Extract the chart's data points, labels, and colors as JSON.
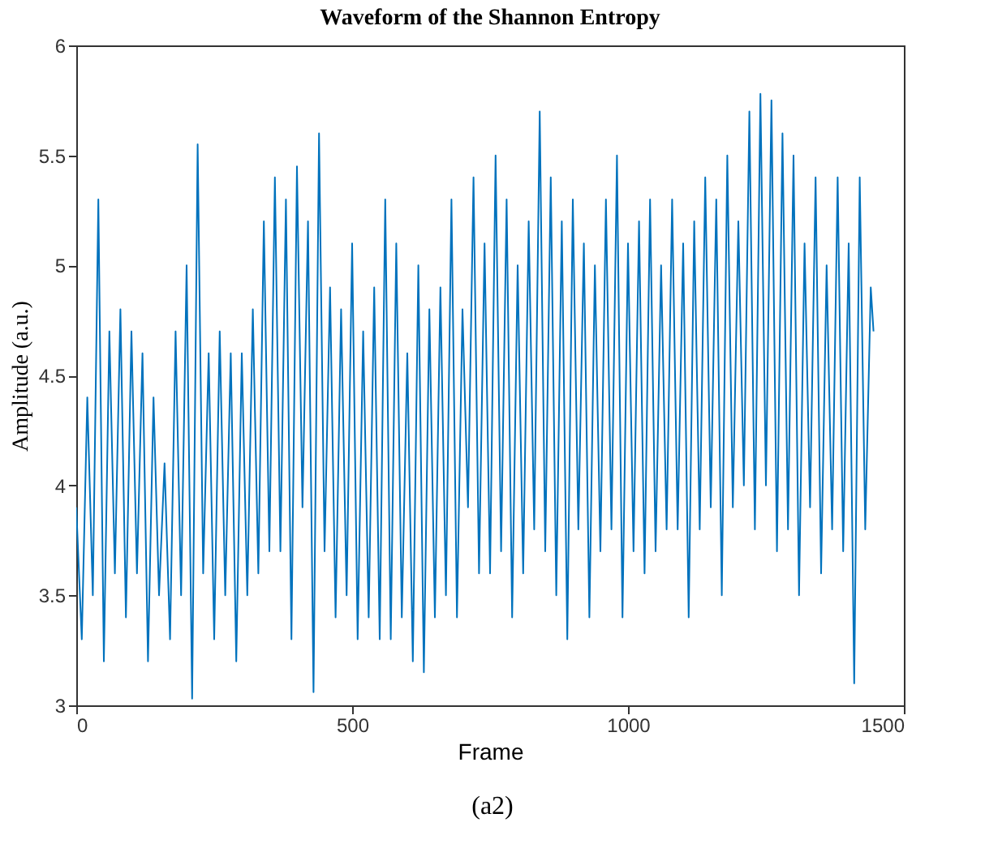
{
  "chart_data": {
    "type": "line",
    "title": "Waveform of the Shannon Entropy",
    "xlabel": "Frame",
    "ylabel": "Amplitude (a.u.)",
    "annotations": [
      "(a2)"
    ],
    "xlim": [
      0,
      1500
    ],
    "xticks": [
      0,
      500,
      1000,
      1500
    ],
    "ylim": [
      3,
      6
    ],
    "yticks": [
      3,
      3.5,
      4,
      4.5,
      5,
      5.5,
      6
    ],
    "grid": false,
    "x": [
      0,
      10,
      20,
      30,
      40,
      50,
      60,
      70,
      80,
      90,
      100,
      110,
      120,
      130,
      140,
      150,
      160,
      170,
      180,
      190,
      200,
      210,
      220,
      230,
      240,
      250,
      260,
      270,
      280,
      290,
      300,
      310,
      320,
      330,
      340,
      350,
      360,
      370,
      380,
      390,
      400,
      410,
      420,
      430,
      440,
      450,
      460,
      470,
      480,
      490,
      500,
      510,
      520,
      530,
      540,
      550,
      560,
      570,
      580,
      590,
      600,
      610,
      620,
      630,
      640,
      650,
      660,
      670,
      680,
      690,
      700,
      710,
      720,
      730,
      740,
      750,
      760,
      770,
      780,
      790,
      800,
      810,
      820,
      830,
      840,
      850,
      860,
      870,
      880,
      890,
      900,
      910,
      920,
      930,
      940,
      950,
      960,
      970,
      980,
      990,
      1000,
      1010,
      1020,
      1030,
      1040,
      1050,
      1060,
      1070,
      1080,
      1090,
      1100,
      1110,
      1120,
      1130,
      1140,
      1150,
      1160,
      1170,
      1180,
      1190,
      1200,
      1210,
      1220,
      1230,
      1240,
      1250,
      1260,
      1270,
      1280,
      1290,
      1300,
      1310,
      1320,
      1330,
      1340,
      1350,
      1360,
      1370,
      1380,
      1390,
      1400,
      1410,
      1420,
      1430,
      1440,
      1445
    ],
    "series": [
      {
        "color": "#0072bd",
        "values": [
          3.9,
          3.3,
          4.4,
          3.5,
          5.3,
          3.2,
          4.7,
          3.6,
          4.8,
          3.4,
          4.7,
          3.6,
          4.6,
          3.2,
          4.4,
          3.5,
          4.1,
          3.3,
          4.7,
          3.5,
          5.0,
          3.03,
          5.55,
          3.6,
          4.6,
          3.3,
          4.7,
          3.5,
          4.6,
          3.2,
          4.6,
          3.5,
          4.8,
          3.6,
          5.2,
          3.7,
          5.4,
          3.7,
          5.3,
          3.3,
          5.45,
          3.9,
          5.2,
          3.06,
          5.6,
          3.7,
          4.9,
          3.4,
          4.8,
          3.5,
          5.1,
          3.3,
          4.7,
          3.4,
          4.9,
          3.3,
          5.3,
          3.3,
          5.1,
          3.4,
          4.6,
          3.2,
          5.0,
          3.15,
          4.8,
          3.4,
          4.9,
          3.5,
          5.3,
          3.4,
          4.8,
          3.9,
          5.4,
          3.6,
          5.1,
          3.6,
          5.5,
          3.7,
          5.3,
          3.4,
          5.0,
          3.6,
          5.2,
          3.8,
          5.7,
          3.7,
          5.4,
          3.5,
          5.2,
          3.3,
          5.3,
          3.8,
          5.1,
          3.4,
          5.0,
          3.7,
          5.3,
          3.8,
          5.5,
          3.4,
          5.1,
          3.7,
          5.2,
          3.6,
          5.3,
          3.7,
          5.0,
          3.8,
          5.3,
          3.8,
          5.1,
          3.4,
          5.2,
          3.8,
          5.4,
          3.9,
          5.3,
          3.5,
          5.5,
          3.9,
          5.2,
          4.0,
          5.7,
          3.8,
          5.78,
          4.0,
          5.75,
          3.7,
          5.6,
          3.8,
          5.5,
          3.5,
          5.1,
          3.9,
          5.4,
          3.6,
          5.0,
          3.8,
          5.4,
          3.7,
          5.1,
          3.1,
          5.4,
          3.8,
          4.9,
          4.7
        ]
      }
    ]
  }
}
